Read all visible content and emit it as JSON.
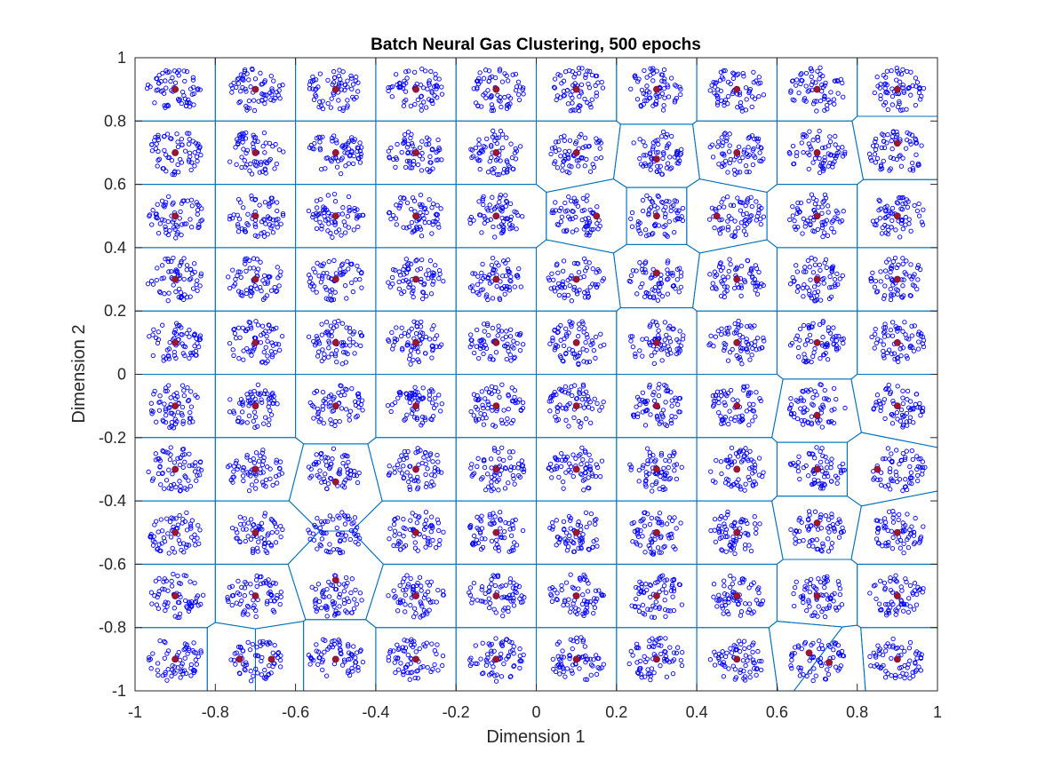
{
  "chart_data": {
    "type": "scatter",
    "title": "Batch Neural Gas Clustering, 500 epochs",
    "xlabel": "Dimension 1",
    "ylabel": "Dimension 2",
    "xlim": [
      -1,
      1
    ],
    "ylim": [
      -1,
      1
    ],
    "xticks": [
      "-1",
      "-0.8",
      "-0.6",
      "-0.4",
      "-0.2",
      "0",
      "0.2",
      "0.4",
      "0.6",
      "0.8",
      "1"
    ],
    "yticks": [
      "1",
      "0.8",
      "0.6",
      "0.4",
      "0.2",
      "0",
      "-0.2",
      "-0.4",
      "-0.6",
      "-0.8",
      "-1"
    ],
    "grid": false,
    "legend": "none",
    "cluster_centers": {
      "x": [
        -0.9,
        -0.7,
        -0.5,
        -0.3,
        -0.1,
        0.1,
        0.3,
        0.5,
        0.7,
        0.9
      ],
      "y": [
        0.9,
        0.7,
        0.5,
        0.3,
        0.1,
        -0.1,
        -0.3,
        -0.5,
        -0.7,
        -0.9
      ]
    },
    "points_per_cluster": 64,
    "cluster_radius": 0.07,
    "series": [
      {
        "marker": "o",
        "color": "#0000ff",
        "description": "input samples (small open circles) around each of the 100 grid centers"
      },
      {
        "marker": "filled circle",
        "color": "#a2142f",
        "x": [
          -0.9,
          -0.7,
          -0.5,
          -0.3,
          -0.1,
          0.1,
          0.3,
          0.5,
          0.7,
          0.9,
          -0.9,
          -0.7,
          -0.5,
          -0.3,
          -0.1,
          0.1,
          0.3,
          0.5,
          0.7,
          0.9,
          -0.9,
          -0.7,
          -0.5,
          -0.3,
          -0.1,
          0.15,
          0.3,
          0.45,
          0.7,
          0.9,
          -0.9,
          -0.7,
          -0.5,
          -0.3,
          -0.1,
          0.1,
          0.3,
          0.5,
          0.7,
          0.9,
          -0.9,
          -0.7,
          -0.5,
          -0.3,
          -0.1,
          0.1,
          0.3,
          0.5,
          0.7,
          0.9,
          -0.9,
          -0.7,
          -0.5,
          -0.3,
          -0.1,
          0.1,
          0.3,
          0.5,
          0.7,
          0.9,
          -0.9,
          -0.7,
          -0.5,
          -0.3,
          -0.1,
          0.1,
          0.3,
          0.5,
          0.7,
          0.85,
          -0.9,
          -0.7,
          -0.3,
          -0.1,
          0.1,
          0.3,
          0.5,
          0.7,
          0.9,
          -0.9,
          -0.7,
          -0.5,
          -0.3,
          -0.1,
          0.1,
          0.3,
          0.5,
          0.7,
          0.9,
          -0.9,
          -0.74,
          -0.66,
          -0.5,
          -0.3,
          -0.1,
          0.1,
          0.3,
          0.5,
          0.68,
          0.73,
          0.9
        ],
        "y": [
          0.9,
          0.9,
          0.9,
          0.9,
          0.9,
          0.9,
          0.9,
          0.9,
          0.9,
          0.9,
          0.7,
          0.7,
          0.7,
          0.7,
          0.7,
          0.7,
          0.68,
          0.7,
          0.7,
          0.73,
          0.5,
          0.5,
          0.5,
          0.5,
          0.5,
          0.5,
          0.5,
          0.5,
          0.5,
          0.5,
          0.3,
          0.3,
          0.3,
          0.3,
          0.3,
          0.3,
          0.32,
          0.3,
          0.3,
          0.3,
          0.1,
          0.1,
          0.1,
          0.1,
          0.1,
          0.1,
          0.1,
          0.1,
          0.1,
          0.1,
          -0.1,
          -0.1,
          -0.1,
          -0.1,
          -0.1,
          -0.1,
          -0.1,
          -0.1,
          -0.13,
          -0.1,
          -0.3,
          -0.3,
          -0.34,
          -0.3,
          -0.3,
          -0.3,
          -0.3,
          -0.3,
          -0.3,
          -0.3,
          -0.5,
          -0.5,
          -0.5,
          -0.5,
          -0.5,
          -0.5,
          -0.5,
          -0.47,
          -0.5,
          -0.7,
          -0.7,
          -0.65,
          -0.7,
          -0.7,
          -0.7,
          -0.7,
          -0.7,
          -0.7,
          -0.7,
          -0.9,
          -0.9,
          -0.9,
          -0.9,
          -0.9,
          -0.9,
          -0.9,
          -0.9,
          -0.9,
          -0.88,
          -0.91,
          -0.9
        ],
        "description": "neural gas prototype vectors (red filled dots)"
      },
      {
        "type": "line",
        "color": "#0072bd",
        "description": "Voronoi cell boundaries between prototypes"
      }
    ]
  }
}
